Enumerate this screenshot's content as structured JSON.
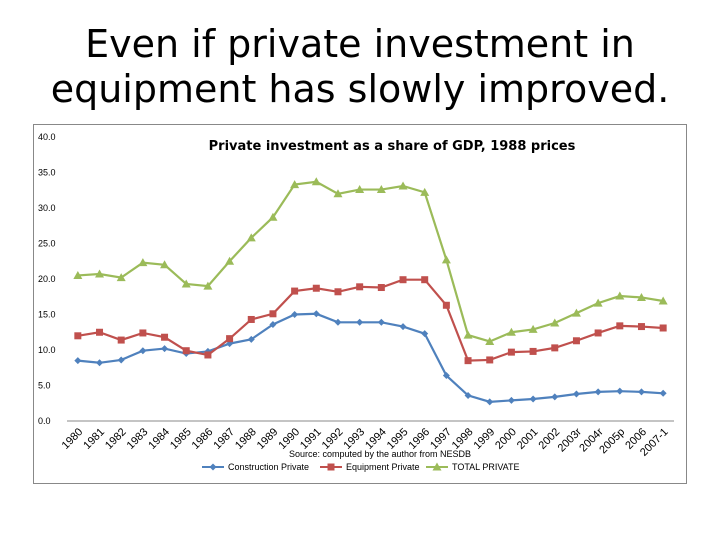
{
  "slide": {
    "title": "Even if private investment in equipment has slowly improved."
  },
  "chart_data": {
    "type": "line",
    "title": "Private investment as a share of GDP, 1988 prices",
    "source_note": "Source: computed by the author from NESDB",
    "ylim": [
      0,
      40
    ],
    "yticks": [
      "0.0",
      "5.0",
      "10.0",
      "15.0",
      "20.0",
      "25.0",
      "30.0",
      "35.0",
      "40.0"
    ],
    "grid": false,
    "legend_position": "bottom",
    "categories": [
      "1980",
      "1981",
      "1982",
      "1983",
      "1984",
      "1985",
      "1986",
      "1987",
      "1988",
      "1989",
      "1990",
      "1991",
      "1992",
      "1993",
      "1994",
      "1995",
      "1996",
      "1997",
      "1998",
      "1999",
      "2000",
      "2001",
      "2002",
      "2003r",
      "2004r",
      "2005p",
      "2006",
      "2007-1"
    ],
    "series": [
      {
        "name": "Construction Private",
        "color": "#4f81bd",
        "marker": "diamond",
        "values": [
          8.5,
          8.2,
          8.6,
          9.9,
          10.2,
          9.5,
          9.8,
          10.9,
          11.5,
          13.6,
          15.0,
          15.1,
          13.9,
          13.9,
          13.9,
          13.3,
          12.3,
          6.4,
          3.6,
          2.7,
          2.9,
          3.1,
          3.4,
          3.8,
          4.1,
          4.2,
          4.1,
          3.9
        ]
      },
      {
        "name": "Equipment Private",
        "color": "#c0504d",
        "marker": "square",
        "values": [
          12.0,
          12.5,
          11.4,
          12.4,
          11.8,
          9.9,
          9.3,
          11.6,
          14.3,
          15.1,
          18.3,
          18.7,
          18.2,
          18.9,
          18.8,
          19.9,
          19.9,
          16.3,
          8.5,
          8.6,
          9.7,
          9.8,
          10.3,
          11.3,
          12.4,
          13.4,
          13.3,
          13.1
        ]
      },
      {
        "name": "TOTAL PRIVATE",
        "color": "#9bbb59",
        "marker": "triangle",
        "values": [
          20.5,
          20.7,
          20.2,
          22.3,
          22.0,
          19.3,
          19.0,
          22.5,
          25.8,
          28.7,
          33.3,
          33.7,
          32.0,
          32.6,
          32.6,
          33.1,
          32.2,
          22.7,
          12.1,
          11.2,
          12.5,
          12.9,
          13.8,
          15.2,
          16.6,
          17.6,
          17.4,
          16.9
        ]
      }
    ]
  }
}
